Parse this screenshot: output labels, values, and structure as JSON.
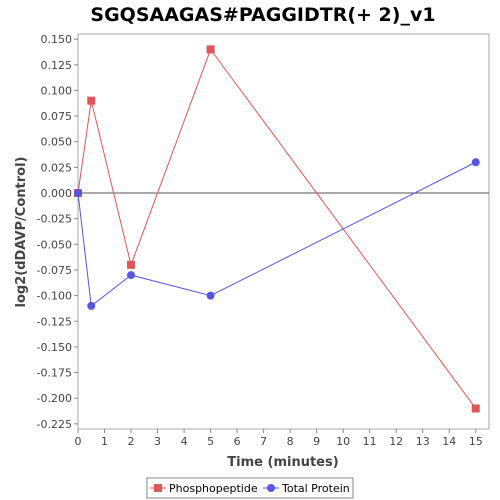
{
  "chart_data": {
    "type": "line",
    "title": "SGQSAAGAS#PAGGIDTR(+ 2)_v1",
    "xlabel": "Time (minutes)",
    "ylabel": "log2(dDAVP/Control)",
    "xlim": [
      0,
      15.5
    ],
    "ylim": [
      -0.23,
      0.155
    ],
    "xticks": [
      0,
      1,
      2,
      3,
      4,
      5,
      6,
      7,
      8,
      9,
      10,
      11,
      12,
      13,
      14,
      15
    ],
    "yticks": [
      0.15,
      0.125,
      0.1,
      0.075,
      0.05,
      0.025,
      0.0,
      -0.025,
      -0.05,
      -0.075,
      -0.1,
      -0.125,
      -0.15,
      -0.175,
      -0.2,
      -0.225
    ],
    "ytick_labels": [
      "0.150",
      "0.125",
      "0.100",
      "0.075",
      "0.050",
      "0.025",
      "0.000",
      "-0.025",
      "-0.050",
      "-0.075",
      "-0.100",
      "-0.125",
      "-0.150",
      "-0.175",
      "-0.200",
      "-0.225"
    ],
    "grid": false,
    "zero_line": true,
    "legend_position": "bottom",
    "series": [
      {
        "name": "Phosphopeptide",
        "color": "#e05555",
        "marker": "square",
        "x": [
          0,
          0.5,
          2,
          5,
          15
        ],
        "y": [
          0.0,
          0.09,
          -0.07,
          0.14,
          -0.21
        ]
      },
      {
        "name": "Total Protein",
        "color": "#5555e0",
        "marker": "circle",
        "x": [
          0,
          0.5,
          2,
          5,
          15
        ],
        "y": [
          0.0,
          -0.11,
          -0.08,
          -0.1,
          0.03
        ]
      }
    ]
  }
}
